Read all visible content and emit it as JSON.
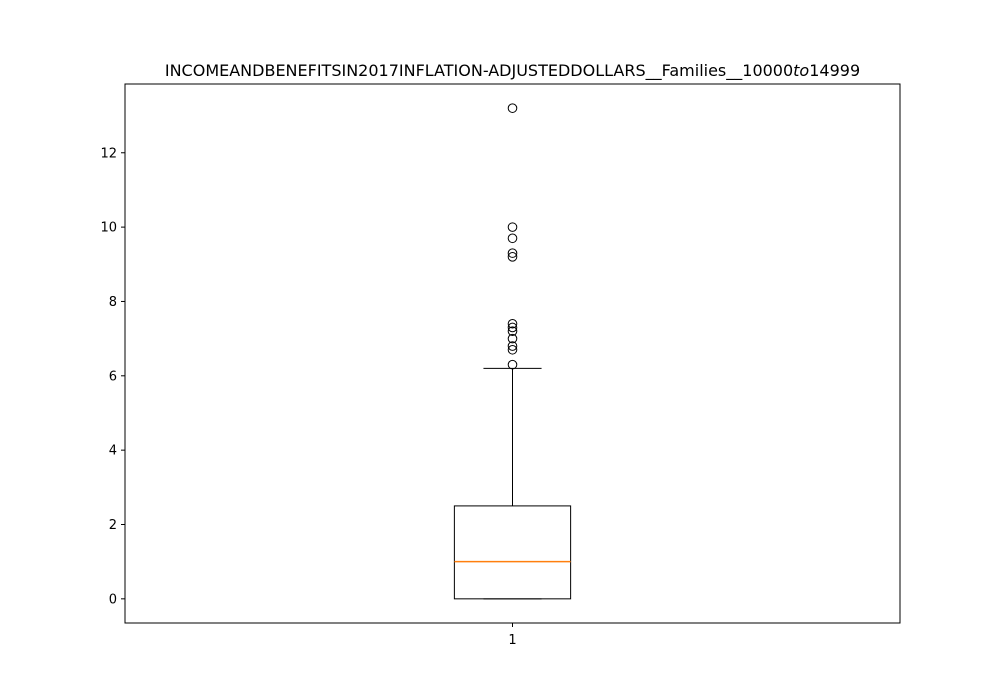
{
  "chart_data": {
    "type": "box",
    "title": "INCOMEANDBENEFITSIN2017INFLATION-ADJUSTEDDOLLARS__Families__10000$to$14999",
    "title_display": {
      "prefix": "INCOMEANDBENEFITSIN2017INFLATION-ADJUSTEDDOLLARS__Families__10000",
      "italic": "to",
      "suffix": "14999"
    },
    "xlabel": "",
    "ylabel": "",
    "ylim": [
      -0.65,
      13.85
    ],
    "yticks": [
      0,
      2,
      4,
      6,
      8,
      10,
      12
    ],
    "xlim": [
      0.5,
      1.5
    ],
    "categories": [
      "1"
    ],
    "boxes": [
      {
        "position": 1,
        "whisker_low": 0.0,
        "q1": 0.0,
        "median": 1.0,
        "q3": 2.5,
        "whisker_high": 6.2,
        "outliers": [
          6.3,
          6.7,
          6.8,
          7.0,
          7.2,
          7.3,
          7.4,
          9.2,
          9.3,
          9.7,
          10.0,
          13.2
        ]
      }
    ],
    "grid": false,
    "legend": "none",
    "colors": {
      "box": "#000000",
      "median": "#ff7f0e",
      "whisker": "#000000",
      "flier": "#000000"
    }
  }
}
